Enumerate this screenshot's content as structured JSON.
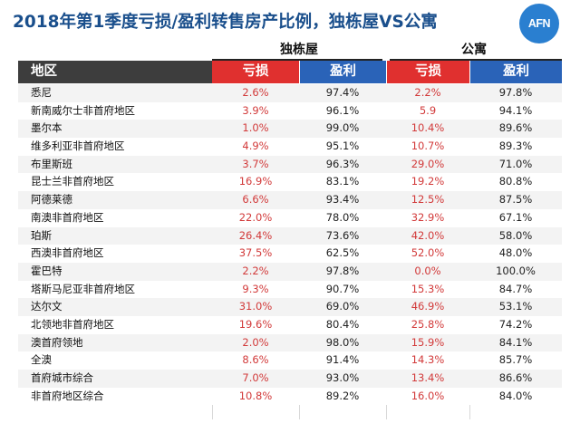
{
  "title": "2018年第1季度亏损/盈利转售房产比例，独栋屋VS公寓",
  "logo_text": "AFN",
  "groups": {
    "house": "独栋屋",
    "apartment": "公寓"
  },
  "columns": [
    "地区",
    "亏损",
    "盈利",
    "亏损",
    "盈利"
  ],
  "colors": {
    "header_dark": "#3d3d3d",
    "header_red": "#e0302f",
    "header_blue": "#2a63b8",
    "loss_text": "#d23a3a",
    "title": "#1a4f8c"
  },
  "rows": [
    {
      "region": "悉尼",
      "house_loss": "2.6%",
      "house_profit": "97.4%",
      "apt_loss": "2.2%",
      "apt_profit": "97.8%"
    },
    {
      "region": "新南威尔士非首府地区",
      "house_loss": "3.9%",
      "house_profit": "96.1%",
      "apt_loss": "5.9",
      "apt_profit": "94.1%"
    },
    {
      "region": "墨尔本",
      "house_loss": "1.0%",
      "house_profit": "99.0%",
      "apt_loss": "10.4%",
      "apt_profit": "89.6%"
    },
    {
      "region": "维多利亚非首府地区",
      "house_loss": "4.9%",
      "house_profit": "95.1%",
      "apt_loss": "10.7%",
      "apt_profit": "89.3%"
    },
    {
      "region": "布里斯班",
      "house_loss": "3.7%",
      "house_profit": "96.3%",
      "apt_loss": "29.0%",
      "apt_profit": "71.0%"
    },
    {
      "region": "昆士兰非首府地区",
      "house_loss": "16.9%",
      "house_profit": "83.1%",
      "apt_loss": "19.2%",
      "apt_profit": "80.8%"
    },
    {
      "region": "阿德莱德",
      "house_loss": "6.6%",
      "house_profit": "93.4%",
      "apt_loss": "12.5%",
      "apt_profit": "87.5%"
    },
    {
      "region": "南澳非首府地区",
      "house_loss": "22.0%",
      "house_profit": "78.0%",
      "apt_loss": "32.9%",
      "apt_profit": "67.1%"
    },
    {
      "region": "珀斯",
      "house_loss": "26.4%",
      "house_profit": "73.6%",
      "apt_loss": "42.0%",
      "apt_profit": "58.0%"
    },
    {
      "region": "西澳非首府地区",
      "house_loss": "37.5%",
      "house_profit": "62.5%",
      "apt_loss": "52.0%",
      "apt_profit": "48.0%"
    },
    {
      "region": "霍巴特",
      "house_loss": "2.2%",
      "house_profit": "97.8%",
      "apt_loss": "0.0%",
      "apt_profit": "100.0%"
    },
    {
      "region": "塔斯马尼亚非首府地区",
      "house_loss": "9.3%",
      "house_profit": "90.7%",
      "apt_loss": "15.3%",
      "apt_profit": "84.7%"
    },
    {
      "region": "达尔文",
      "house_loss": "31.0%",
      "house_profit": "69.0%",
      "apt_loss": "46.9%",
      "apt_profit": "53.1%"
    },
    {
      "region": "北领地非首府地区",
      "house_loss": "19.6%",
      "house_profit": "80.4%",
      "apt_loss": "25.8%",
      "apt_profit": "74.2%"
    },
    {
      "region": "澳首府领地",
      "house_loss": "2.0%",
      "house_profit": "98.0%",
      "apt_loss": "15.9%",
      "apt_profit": "84.1%"
    },
    {
      "region": "全澳",
      "house_loss": "8.6%",
      "house_profit": "91.4%",
      "apt_loss": "14.3%",
      "apt_profit": "85.7%"
    },
    {
      "region": "首府城市综合",
      "house_loss": "7.0%",
      "house_profit": "93.0%",
      "apt_loss": "13.4%",
      "apt_profit": "86.6%"
    },
    {
      "region": "非首府地区综合",
      "house_loss": "10.8%",
      "house_profit": "89.2%",
      "apt_loss": "16.0%",
      "apt_profit": "84.0%"
    }
  ]
}
